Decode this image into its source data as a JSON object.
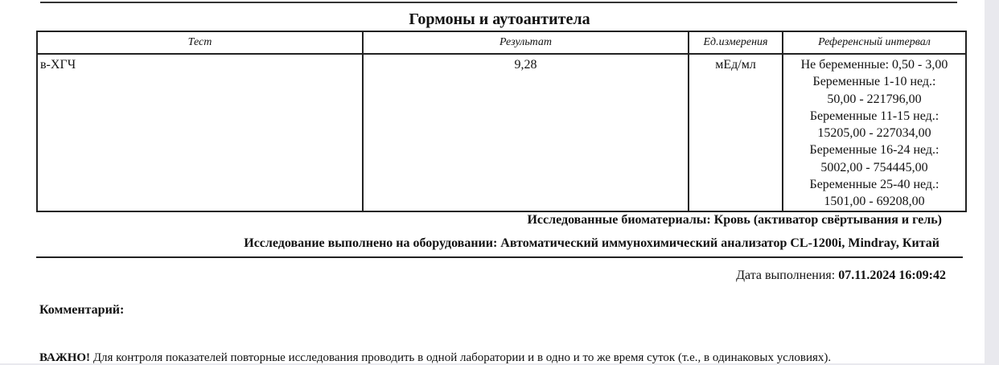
{
  "section_title": "Гормоны и аутоантитела",
  "table": {
    "headers": [
      "Тест",
      "Результат",
      "Ед.измерения",
      "Референсный интервал"
    ],
    "rows": [
      {
        "test": "в-ХГЧ",
        "result": "9,28",
        "unit": "мЕд/мл",
        "reference": [
          "Не беременные: 0,50 - 3,00",
          "Беременные 1-10 нед.:",
          "50,00 - 221796,00",
          "Беременные 11-15 нед.:",
          "15205,00 - 227034,00",
          "Беременные 16-24 нед.:",
          "5002,00 - 754445,00",
          "Беременные 25-40 нед.:",
          "1501,00 - 69208,00"
        ]
      }
    ]
  },
  "biomaterials": "Исследованные биоматериалы: Кровь (активатор свёртывания и гель)",
  "equipment": "Исследование выполнено на оборудовании: Автоматический иммунохимический анализатор CL-1200i, Mindray, Китай",
  "date_label": "Дата выполнения:",
  "date_value": "07.11.2024 16:09:42",
  "comment_label": "Комментарий:",
  "important_label": "ВАЖНО!",
  "important_text": "Для контроля показателей повторные исследования проводить в одной лаборатории и в одно и то же время суток (т.е., в одинаковых условиях)."
}
